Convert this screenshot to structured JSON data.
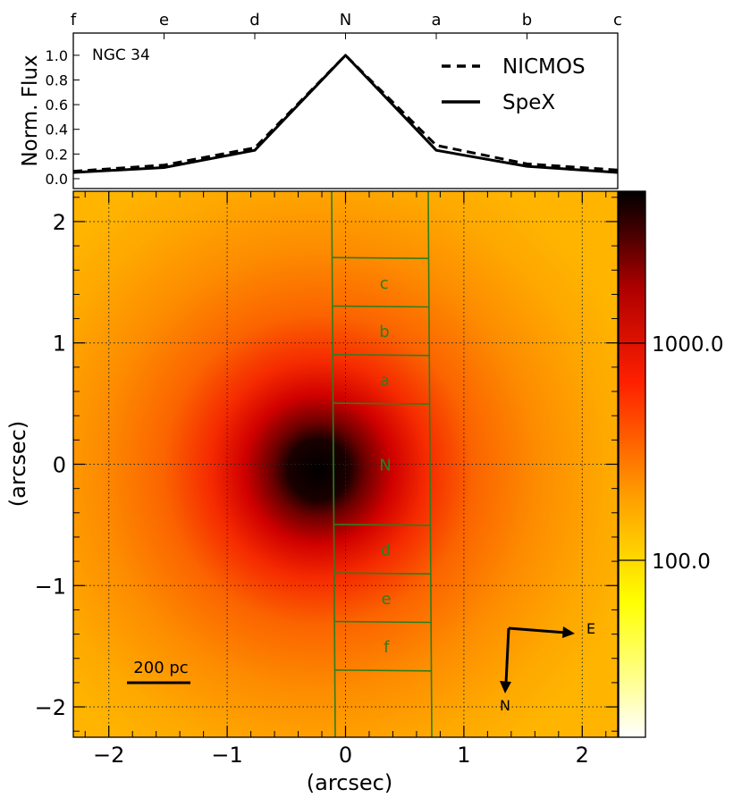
{
  "chart_data": [
    {
      "type": "line",
      "object_label": "NGC 34",
      "ylabel": "Norm. Flux",
      "top_axis_labels": [
        "f",
        "e",
        "d",
        "N",
        "a",
        "b",
        "c"
      ],
      "y_ticks": [
        "0.0",
        "0.2",
        "0.4",
        "0.6",
        "0.8",
        "1.0"
      ],
      "ylim": [
        -0.08,
        1.18
      ],
      "x_positions": [
        0,
        1,
        2,
        3,
        4,
        5,
        6
      ],
      "series": [
        {
          "name": "NICMOS",
          "style": "dashed",
          "values": [
            0.06,
            0.11,
            0.25,
            1.0,
            0.27,
            0.12,
            0.07
          ]
        },
        {
          "name": "SpeX",
          "style": "solid",
          "values": [
            0.05,
            0.09,
            0.23,
            1.0,
            0.23,
            0.1,
            0.05
          ]
        }
      ],
      "legend": [
        "NICMOS",
        "SpeX"
      ]
    },
    {
      "type": "heatmap",
      "xlabel": "(arcsec)",
      "ylabel": "(arcsec)",
      "x_ticks": [
        "−2",
        "−1",
        "0",
        "1",
        "2"
      ],
      "y_ticks": [
        "2",
        "1",
        "0",
        "−1",
        "−2"
      ],
      "xlim": [
        -2.3,
        2.3
      ],
      "ylim": [
        -2.25,
        2.25
      ],
      "grid": true,
      "peak_position_arcsec": [
        -0.15,
        -0.05
      ],
      "colorbar_ticks": [
        "1000.0",
        "100.0"
      ],
      "colorbar_scale": "log",
      "slit_segments": [
        {
          "label": "c",
          "y_range": [
            1.3,
            1.7
          ]
        },
        {
          "label": "b",
          "y_range": [
            0.9,
            1.3
          ]
        },
        {
          "label": "a",
          "y_range": [
            0.5,
            0.9
          ]
        },
        {
          "label": "N",
          "y_range": [
            -0.5,
            0.5
          ]
        },
        {
          "label": "d",
          "y_range": [
            -0.9,
            -0.5
          ]
        },
        {
          "label": "e",
          "y_range": [
            -1.3,
            -0.9
          ]
        },
        {
          "label": "f",
          "y_range": [
            -1.7,
            -1.3
          ]
        }
      ],
      "scale_bar_label": "200 pc",
      "compass": {
        "north": "N",
        "east": "E"
      }
    }
  ]
}
